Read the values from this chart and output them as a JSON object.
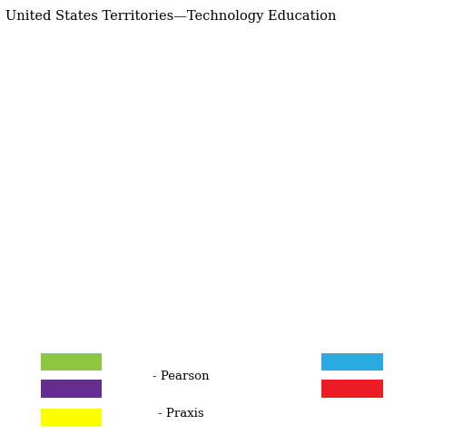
{
  "title": "United States Territories—Technology Education",
  "title_fontsize": 10.5,
  "background_color": "#ffffff",
  "map_background": "#999999",
  "legend_colors_left": [
    "#8dc63f",
    "#662d91",
    "#ffff00"
  ],
  "legend_colors_right": [
    "#29abe2",
    "#ed1c24"
  ],
  "legend_text_pearson": "- Pearson",
  "legend_text_praxis": "- Praxis",
  "state_colors": {
    "Washington": "#8dc63f",
    "Oregon": "#ffff00",
    "California": "#8dc63f",
    "Nevada": "#8dc63f",
    "Idaho": "#29abe2",
    "Montana": "#ed1c24",
    "Wyoming": "#29abe2",
    "Utah": "#29abe2",
    "Arizona": "#662d91",
    "Colorado": "#8dc63f",
    "New Mexico": "#662d91",
    "North Dakota": "#29abe2",
    "South Dakota": "#29abe2",
    "Nebraska": "#29abe2",
    "Kansas": "#8dc63f",
    "Oklahoma": "#8dc63f",
    "Texas": "#662d91",
    "Minnesota": "#29abe2",
    "Iowa": "#8dc63f",
    "Missouri": "#8dc63f",
    "Arkansas": "#8dc63f",
    "Louisiana": "#29abe2",
    "Wisconsin": "#8dc63f",
    "Illinois": "#8dc63f",
    "Mississippi": "#29abe2",
    "Michigan": "#29abe2",
    "Indiana": "#29abe2",
    "Ohio": "#ffff00",
    "Kentucky": "#29abe2",
    "Tennessee": "#29abe2",
    "Alabama": "#29abe2",
    "Georgia": "#8dc63f",
    "Florida": "#8dc63f",
    "South Carolina": "#8dc63f",
    "North Carolina": "#ffff00",
    "Virginia": "#ffff00",
    "West Virginia": "#29abe2",
    "Pennsylvania": "#8dc63f",
    "New York": "#8dc63f",
    "Vermont": "#ed1c24",
    "New Hampshire": "#8dc63f",
    "Maine": "#8dc63f",
    "Massachusetts": "#ffff00",
    "Rhode Island": "#ffff00",
    "Connecticut": "#29abe2",
    "New Jersey": "#ffff00",
    "Delaware": "#29abe2",
    "Maryland": "#8dc63f",
    "Alaska": "#ed1c24",
    "Hawaii": "#29abe2"
  },
  "map_extent_main": [
    -125,
    -66.5,
    24.0,
    50.5
  ],
  "map_extent_ak": [
    -180,
    -130,
    50,
    72
  ],
  "map_extent_hi": [
    -162,
    -154,
    18.5,
    22.5
  ]
}
